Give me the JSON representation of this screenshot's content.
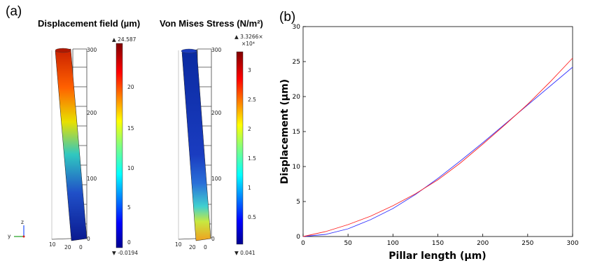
{
  "labels": {
    "a": "(a)",
    "b": "(b)"
  },
  "sim1": {
    "title": "Displacement field (µm)",
    "max": "▲ 24.587",
    "min": "▼ -0.0194",
    "colorbar_ticks": [
      "20",
      "15",
      "10",
      "5",
      "0"
    ],
    "height_ticks": [
      "300",
      "200",
      "100",
      "0"
    ],
    "base_ticks": [
      "10",
      "20",
      "0"
    ]
  },
  "sim2": {
    "title": "Von Mises Stress (N/m²)",
    "max_line1": "▲ 3.3266×",
    "max_line2": "×10⁴",
    "min": "▼ 0.041",
    "colorbar_ticks": [
      "3",
      "2.5",
      "2",
      "1.5",
      "1",
      "0.5"
    ],
    "height_ticks": [
      "300",
      "200",
      "100",
      "0"
    ],
    "base_ticks": [
      "10",
      "20",
      "0"
    ]
  },
  "axes_glyph": {
    "z": "z",
    "y": "y"
  },
  "colors": {
    "blue_curve": "#3333ff",
    "red_curve": "#ff2020"
  },
  "chart_data": {
    "type": "line",
    "xlabel": "Pillar length (µm)",
    "ylabel": "Displacement (µm)",
    "xlim": [
      0,
      300
    ],
    "ylim": [
      0,
      30
    ],
    "xticks": [
      0,
      50,
      100,
      150,
      200,
      250,
      300
    ],
    "yticks": [
      0,
      5,
      10,
      15,
      20,
      25,
      30
    ],
    "grid": false,
    "series": [
      {
        "color": "#3333ff",
        "x": [
          0,
          25,
          50,
          75,
          100,
          125,
          150,
          175,
          200,
          225,
          250,
          275,
          300
        ],
        "y": [
          0,
          0.3,
          1.1,
          2.4,
          4.0,
          6.0,
          8.3,
          10.8,
          13.4,
          16.1,
          18.8,
          21.5,
          24.2
        ]
      },
      {
        "color": "#ff2020",
        "x": [
          0,
          25,
          50,
          75,
          100,
          125,
          150,
          175,
          200,
          225,
          250,
          275,
          300
        ],
        "y": [
          0,
          0.7,
          1.7,
          2.9,
          4.4,
          6.1,
          8.1,
          10.5,
          13.2,
          16.0,
          18.9,
          22.1,
          25.5
        ]
      }
    ]
  }
}
